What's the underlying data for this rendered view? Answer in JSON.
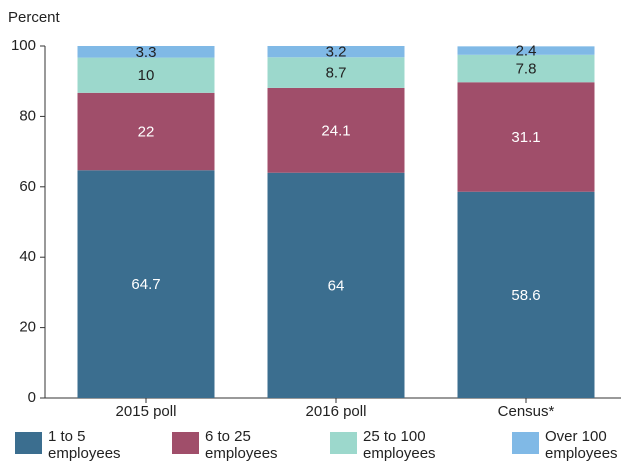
{
  "chart_data": {
    "type": "stacked_bar",
    "y_label": "Percent",
    "categories": [
      "2015 poll",
      "2016 poll",
      "Census*"
    ],
    "series": [
      {
        "name": "1 to 5 employees",
        "color": "#3b6e8f",
        "values": [
          64.7,
          64,
          58.6
        ]
      },
      {
        "name": "6 to 25 employees",
        "color": "#a04e6a",
        "values": [
          22,
          24.1,
          31.1
        ]
      },
      {
        "name": "25 to 100 employees",
        "color": "#9cd8cc",
        "values": [
          10,
          8.7,
          7.8
        ]
      },
      {
        "name": "Over 100 employees",
        "color": "#80b9e6",
        "values": [
          3.3,
          3.2,
          2.4
        ]
      }
    ],
    "ylim": [
      0,
      100
    ],
    "yticks": [
      0,
      20,
      40,
      60,
      80,
      100
    ],
    "grid": false
  }
}
